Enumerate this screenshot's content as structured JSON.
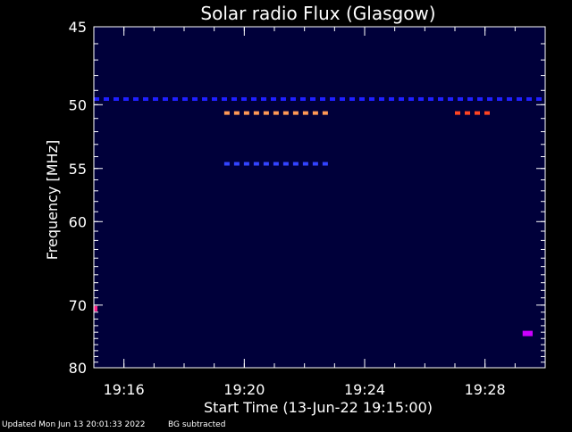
{
  "chart_data": {
    "type": "heatmap",
    "title": "Solar radio Flux (Glasgow)",
    "xlabel": "Start Time (13-Jun-22 19:15:00)",
    "ylabel": "Frequency [MHz]",
    "x_range_minutes": [
      "19:15:00",
      "19:30:00"
    ],
    "x_ticks": [
      "19:16",
      "19:20",
      "19:24",
      "19:28"
    ],
    "y_ticks": [
      "45",
      "50",
      "55",
      "60",
      "70",
      "80"
    ],
    "y_range_mhz": [
      45,
      80
    ],
    "y_scale": "reciprocal",
    "background_color": "#000000",
    "colormap_low": "#00003a",
    "emission_bands": [
      {
        "freq_mhz": 49.6,
        "from": "19:15:00",
        "to": "19:30:00",
        "color": "#2020ff",
        "pattern": "dashed"
      },
      {
        "freq_mhz": 50.6,
        "from": "19:19:20",
        "to": "19:22:50",
        "color": "#ff9955",
        "pattern": "dashed"
      },
      {
        "freq_mhz": 50.6,
        "from": "19:27:00",
        "to": "19:28:10",
        "color": "#ff4422",
        "pattern": "dashed"
      },
      {
        "freq_mhz": 54.6,
        "from": "19:19:20",
        "to": "19:22:50",
        "color": "#3344ff",
        "pattern": "dashed"
      },
      {
        "freq_mhz": 70.5,
        "from": "19:15:00",
        "to": "19:15:05",
        "color": "#ff2288",
        "pattern": "spot"
      },
      {
        "freq_mhz": 74.2,
        "from": "19:29:15",
        "to": "19:29:35",
        "color": "#cc00ff",
        "pattern": "spot"
      }
    ]
  },
  "footer": {
    "updated": "Updated Mon Jun 13 20:01:33 2022",
    "bg_note": "BG subtracted"
  }
}
